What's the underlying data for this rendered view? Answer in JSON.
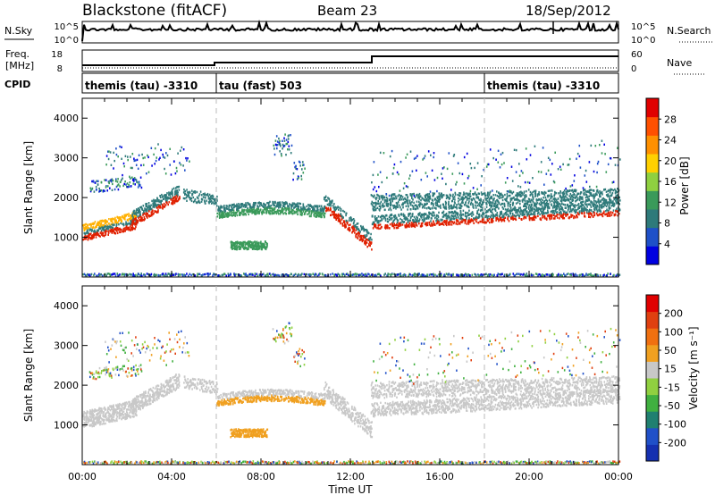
{
  "header": {
    "title": "Blackstone (fitACF)",
    "beam": "Beam 23",
    "date": "18/Sep/2012"
  },
  "summary": {
    "nsky_label": "N.Sky",
    "nsearch_label": "N.Search",
    "freq_label": "Freq.",
    "freq_unit": "[MHz]",
    "nave_label": "Nave",
    "cpid_label": "CPID",
    "nsky_ticks": [
      "10^5",
      "10^0"
    ],
    "nsearch_ticks": [
      "10^5",
      "10^0"
    ],
    "freq_ticks": [
      "18",
      "8"
    ],
    "nave_ticks": [
      "60",
      "0"
    ],
    "cpid_segments": [
      {
        "start_h": 0,
        "label": "themis (tau) -3310"
      },
      {
        "start_h": 6,
        "label": "tau (fast) 503"
      },
      {
        "start_h": 18,
        "label": "themis (tau) -3310"
      }
    ]
  },
  "chart_data": [
    {
      "type": "heatmap",
      "title": "",
      "xlabel": "",
      "ylabel": "Slant Range [km]",
      "x_range_hours": [
        0,
        24
      ],
      "ylim": [
        0,
        4500
      ],
      "yticks": [
        1000,
        2000,
        3000,
        4000
      ],
      "colorbar": {
        "label": "Power [dB]",
        "ticks": [
          "4",
          "8",
          "12",
          "16",
          "20",
          "24",
          "28"
        ],
        "colors": [
          "#0000e0",
          "#1e50c8",
          "#2e7a7a",
          "#3a9a5a",
          "#8fd040",
          "#ffd000",
          "#ff9000",
          "#ff5000",
          "#e00000"
        ]
      }
    },
    {
      "type": "heatmap",
      "title": "",
      "xlabel": "Time UT",
      "ylabel": "Slant Range [km]",
      "x_range_hours": [
        0,
        24
      ],
      "ylim": [
        0,
        4500
      ],
      "yticks": [
        1000,
        2000,
        3000,
        4000
      ],
      "xticks": [
        "00:00",
        "04:00",
        "08:00",
        "12:00",
        "16:00",
        "20:00",
        "00:00"
      ],
      "colorbar": {
        "label": "Velocity [m s⁻¹]",
        "ticks": [
          "200",
          "100",
          "50",
          "15",
          "-15",
          "-50",
          "-100",
          "-200"
        ],
        "colors": [
          "#1530b0",
          "#2050c8",
          "#208070",
          "#40b040",
          "#90d040",
          "#c8c8c8",
          "#f0a020",
          "#f07010",
          "#e04010",
          "#e00000"
        ]
      }
    }
  ]
}
